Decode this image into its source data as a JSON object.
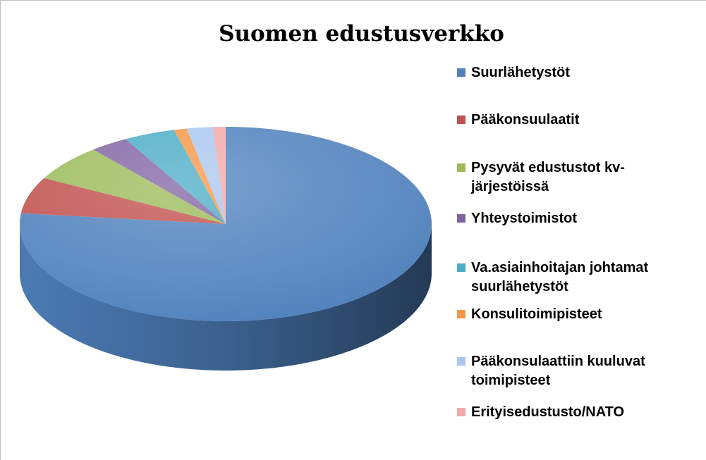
{
  "chart_data": {
    "type": "pie",
    "title": "Suomen edustusverkko",
    "categories": [
      "Suurlähetystöt",
      "Pääkonsuulaatit",
      "Pysyvät edustustot kv-järjestöissä",
      "Yhteystoimistot",
      "Va.asiainhoitajan johtamat suurlähetystöt",
      "Konsulitoimipisteet",
      "Pääkonsulaattiin kuuluvat toimipisteet",
      "Erityisedustusto/NATO"
    ],
    "values": [
      76,
      6,
      6,
      3,
      4,
      1,
      2,
      1
    ],
    "colors": [
      "#4f81bd",
      "#c0504d",
      "#9bbb59",
      "#8064a2",
      "#4bacc6",
      "#f79646",
      "#a9c6f0",
      "#f2a9a9"
    ],
    "legend": "right"
  }
}
